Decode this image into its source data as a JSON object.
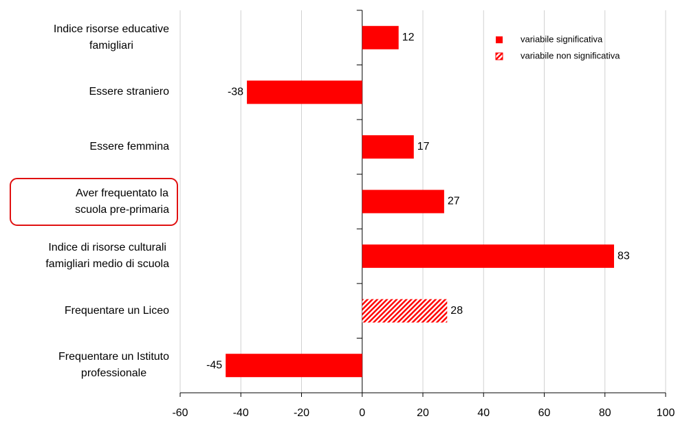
{
  "chart_data": {
    "type": "hbar",
    "categories": [
      "Indice risorse educative\nfamigliari",
      "Essere straniero",
      "Essere femmina",
      "Aver frequentato la\nscuola pre-primaria",
      "Indice di risorse culturali\nfamigliari medio di scuola",
      "Frequentare un Liceo",
      "Frequentare un Istituto\nprofessionale"
    ],
    "series": [
      {
        "name": "variabile significativa",
        "color": "#ff0000",
        "pattern": "solid",
        "values": [
          12,
          -38,
          17,
          27,
          83,
          null,
          -45
        ]
      },
      {
        "name": "variabile non significativa",
        "color": "#ff0000",
        "pattern": "hatch",
        "values": [
          null,
          null,
          null,
          null,
          null,
          28,
          null
        ]
      }
    ],
    "xlim": [
      -60,
      100
    ],
    "xticks": [
      -60,
      -40,
      -20,
      0,
      20,
      40,
      60,
      80,
      100
    ],
    "grid": true,
    "legend": "upper right"
  }
}
